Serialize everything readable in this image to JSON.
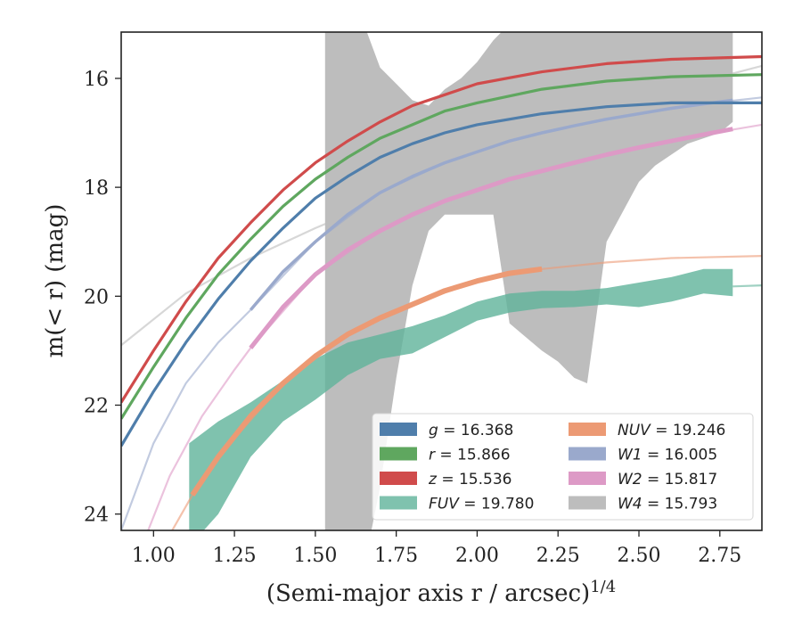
{
  "chart_data": {
    "type": "line",
    "xlabel": "(Semi-major axis r / arcsec)",
    "xlabel_superscript": "1/4",
    "ylabel": "m(< r) (mag)",
    "xlim": [
      0.9,
      2.88
    ],
    "ylim": [
      24.3,
      15.15
    ],
    "y_inverted": true,
    "x_ticks": [
      1.0,
      1.25,
      1.5,
      1.75,
      2.0,
      2.25,
      2.5,
      2.75
    ],
    "x_tick_labels": [
      "1.00",
      "1.25",
      "1.50",
      "1.75",
      "2.00",
      "2.25",
      "2.50",
      "2.75"
    ],
    "y_ticks": [
      16,
      18,
      20,
      22,
      24
    ],
    "y_tick_labels": [
      "16",
      "18",
      "20",
      "22",
      "24"
    ],
    "grid": false,
    "legend_position": "lower-right",
    "legend_columns": 2,
    "series": [
      {
        "name": "g = 16.368",
        "band": "g",
        "value": "16.368",
        "color": "#4f7eab",
        "style": "band",
        "width": 3.2,
        "x": [
          0.9,
          1.0,
          1.1,
          1.2,
          1.3,
          1.4,
          1.5,
          1.6,
          1.7,
          1.8,
          1.9,
          2.0,
          2.2,
          2.4,
          2.6,
          2.88
        ],
        "y": [
          22.75,
          21.75,
          20.85,
          20.05,
          19.35,
          18.75,
          18.2,
          17.8,
          17.45,
          17.2,
          17.0,
          16.85,
          16.65,
          16.52,
          16.45,
          16.45
        ]
      },
      {
        "name": "r = 15.866",
        "band": "r",
        "value": "15.866",
        "color": "#5fa75f",
        "style": "band",
        "width": 3.2,
        "x": [
          0.9,
          1.0,
          1.1,
          1.2,
          1.3,
          1.4,
          1.5,
          1.6,
          1.7,
          1.8,
          1.9,
          2.0,
          2.2,
          2.4,
          2.6,
          2.88
        ],
        "y": [
          22.25,
          21.3,
          20.4,
          19.6,
          18.95,
          18.35,
          17.85,
          17.45,
          17.1,
          16.85,
          16.6,
          16.45,
          16.2,
          16.05,
          15.97,
          15.93
        ]
      },
      {
        "name": "z = 15.536",
        "band": "z",
        "value": "15.536",
        "color": "#d04b4b",
        "style": "band",
        "width": 3.2,
        "x": [
          0.9,
          1.0,
          1.1,
          1.2,
          1.3,
          1.4,
          1.5,
          1.6,
          1.7,
          1.8,
          1.9,
          2.0,
          2.2,
          2.4,
          2.6,
          2.88
        ],
        "y": [
          21.95,
          21.0,
          20.1,
          19.3,
          18.65,
          18.05,
          17.55,
          17.15,
          16.8,
          16.5,
          16.3,
          16.1,
          15.88,
          15.73,
          15.65,
          15.6
        ]
      },
      {
        "name": "FUV = 19.780",
        "band": "FUV",
        "value": "19.780",
        "color": "#5fb39a",
        "style": "fill",
        "x": [
          1.11,
          1.2,
          1.3,
          1.4,
          1.5,
          1.6,
          1.7,
          1.8,
          1.9,
          2.0,
          2.1,
          2.2,
          2.3,
          2.4,
          2.5,
          2.6,
          2.7,
          2.79
        ],
        "y_low": [
          22.7,
          22.3,
          21.95,
          21.55,
          21.15,
          20.85,
          20.7,
          20.55,
          20.35,
          20.1,
          19.95,
          19.9,
          19.9,
          19.85,
          19.75,
          19.65,
          19.5,
          19.5
        ],
        "y_high": [
          24.6,
          24.0,
          22.95,
          22.3,
          21.9,
          21.45,
          21.15,
          21.05,
          20.75,
          20.45,
          20.3,
          20.22,
          20.2,
          20.15,
          20.2,
          20.1,
          19.95,
          20.0
        ],
        "extension_x": [
          2.79,
          2.88
        ],
        "extension_y": [
          19.82,
          19.8
        ]
      },
      {
        "name": "NUV = 19.246",
        "band": "NUV",
        "value": "19.246",
        "color": "#ec9a74",
        "style": "band",
        "width": 6,
        "x": [
          1.12,
          1.2,
          1.3,
          1.4,
          1.5,
          1.6,
          1.7,
          1.8,
          1.9,
          2.0,
          2.1,
          2.2
        ],
        "y": [
          23.65,
          22.95,
          22.2,
          21.6,
          21.1,
          20.7,
          20.4,
          20.15,
          19.9,
          19.72,
          19.58,
          19.5
        ],
        "extension_x": [
          0.9,
          1.0,
          1.12,
          1.2,
          1.4,
          1.6,
          1.8,
          2.0,
          2.2,
          2.4,
          2.6,
          2.88
        ],
        "extension_y": [
          26.0,
          24.9,
          23.65,
          22.95,
          21.6,
          20.7,
          20.15,
          19.72,
          19.5,
          19.38,
          19.3,
          19.26
        ]
      },
      {
        "name": "W1 = 16.005",
        "band": "W1",
        "value": "16.005",
        "color": "#9aa9cc",
        "style": "band",
        "width": 3.5,
        "x": [
          1.3,
          1.4,
          1.5,
          1.6,
          1.7,
          1.8,
          1.9,
          2.0,
          2.1,
          2.2,
          2.3,
          2.4,
          2.5,
          2.6,
          2.7,
          2.79
        ],
        "y": [
          20.25,
          19.55,
          19.0,
          18.5,
          18.1,
          17.8,
          17.55,
          17.35,
          17.15,
          17.0,
          16.87,
          16.75,
          16.65,
          16.55,
          16.47,
          16.4
        ],
        "extension_x": [
          0.9,
          1.0,
          1.1,
          1.2,
          1.3,
          1.5,
          1.7,
          1.9,
          2.1,
          2.3,
          2.5,
          2.7,
          2.88
        ],
        "extension_y": [
          24.3,
          22.7,
          21.6,
          20.85,
          20.25,
          19.0,
          18.1,
          17.55,
          17.15,
          16.87,
          16.65,
          16.47,
          16.35
        ]
      },
      {
        "name": "W2 = 15.817",
        "band": "W2",
        "value": "15.817",
        "color": "#dd9ac6",
        "style": "band",
        "width": 5,
        "x": [
          1.3,
          1.4,
          1.5,
          1.6,
          1.7,
          1.8,
          1.9,
          2.0,
          2.1,
          2.2,
          2.3,
          2.4,
          2.5,
          2.6,
          2.7,
          2.79
        ],
        "y": [
          20.95,
          20.2,
          19.6,
          19.15,
          18.8,
          18.5,
          18.25,
          18.05,
          17.85,
          17.7,
          17.55,
          17.4,
          17.27,
          17.15,
          17.03,
          16.93
        ],
        "extension_x": [
          0.97,
          1.05,
          1.15,
          1.25,
          1.3,
          1.5,
          1.7,
          1.9,
          2.1,
          2.3,
          2.5,
          2.7,
          2.88
        ],
        "extension_y": [
          24.5,
          23.3,
          22.2,
          21.35,
          20.95,
          19.6,
          18.8,
          18.25,
          17.85,
          17.55,
          17.27,
          17.03,
          16.85
        ]
      },
      {
        "name": "W4 = 15.793",
        "band": "W4",
        "value": "15.793",
        "color": "#bdbdbd",
        "style": "fill",
        "x": [
          1.53,
          1.6,
          1.65,
          1.7,
          1.75,
          1.8,
          1.85,
          1.9,
          1.95,
          2.0,
          2.05,
          2.1,
          2.2,
          2.25,
          2.3,
          2.34,
          2.4,
          2.5,
          2.55,
          2.6,
          2.65,
          2.7,
          2.75,
          2.79
        ],
        "y_low": [
          15.0,
          15.0,
          15.0,
          15.8,
          16.1,
          16.4,
          16.5,
          16.2,
          16.0,
          15.7,
          15.3,
          15.0,
          15.0,
          15.0,
          15.0,
          15.0,
          15.0,
          15.0,
          15.0,
          15.0,
          15.0,
          15.0,
          15.0,
          15.0
        ],
        "y_high": [
          25.0,
          25.0,
          25.0,
          23.5,
          21.5,
          19.8,
          18.8,
          18.5,
          18.5,
          18.5,
          18.5,
          20.5,
          21.0,
          21.2,
          21.5,
          21.6,
          19.0,
          17.9,
          17.6,
          17.4,
          17.2,
          17.1,
          17.0,
          16.8
        ],
        "extension_x": [
          0.9,
          1.1,
          1.3,
          1.5,
          1.7,
          1.9,
          2.1,
          2.3,
          2.5,
          2.7,
          2.88
        ],
        "extension_y": [
          20.9,
          19.95,
          19.3,
          18.75,
          18.25,
          17.75,
          17.3,
          16.85,
          16.4,
          16.05,
          15.77
        ]
      }
    ]
  }
}
